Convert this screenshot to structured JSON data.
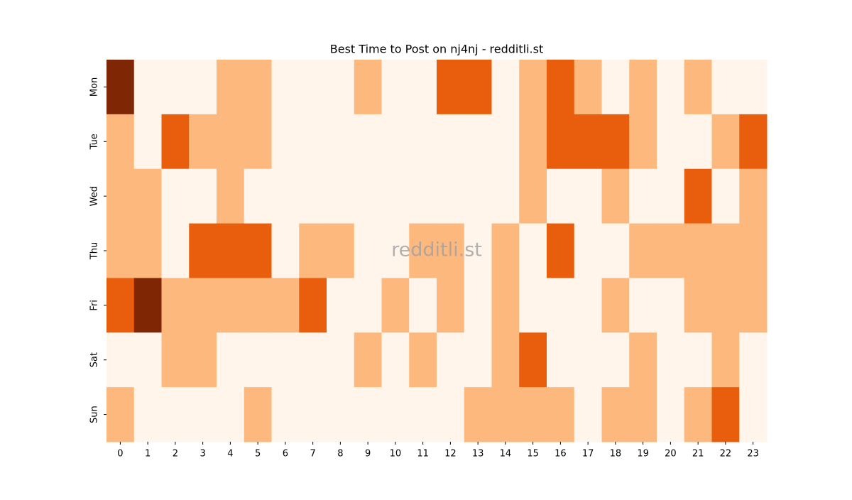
{
  "chart_data": {
    "type": "heatmap",
    "title": "Best Time to Post on nj4nj - redditli.st",
    "watermark": "redditli.st",
    "x_categories": [
      0,
      1,
      2,
      3,
      4,
      5,
      6,
      7,
      8,
      9,
      10,
      11,
      12,
      13,
      14,
      15,
      16,
      17,
      18,
      19,
      20,
      21,
      22,
      23
    ],
    "y_categories": [
      "Mon",
      "Tue",
      "Wed",
      "Thu",
      "Fri",
      "Sat",
      "Sun"
    ],
    "values": [
      [
        3,
        0,
        0,
        0,
        1,
        1,
        0,
        0,
        0,
        1,
        0,
        0,
        2,
        2,
        0,
        1,
        2,
        1,
        0,
        1,
        0,
        1,
        0,
        0
      ],
      [
        1,
        0,
        2,
        1,
        1,
        1,
        0,
        0,
        0,
        0,
        0,
        0,
        0,
        0,
        0,
        1,
        2,
        2,
        2,
        1,
        0,
        0,
        1,
        2
      ],
      [
        1,
        1,
        0,
        0,
        1,
        0,
        0,
        0,
        0,
        0,
        0,
        0,
        0,
        0,
        0,
        1,
        0,
        0,
        1,
        0,
        0,
        2,
        0,
        1
      ],
      [
        1,
        1,
        0,
        2,
        2,
        2,
        0,
        1,
        1,
        0,
        0,
        1,
        1,
        0,
        1,
        0,
        2,
        0,
        0,
        1,
        1,
        1,
        1,
        1
      ],
      [
        2,
        3,
        1,
        1,
        1,
        1,
        1,
        2,
        0,
        0,
        1,
        0,
        1,
        0,
        1,
        0,
        0,
        0,
        1,
        0,
        0,
        1,
        1,
        1
      ],
      [
        0,
        0,
        1,
        1,
        0,
        0,
        0,
        0,
        0,
        1,
        0,
        1,
        0,
        0,
        1,
        2,
        0,
        0,
        0,
        1,
        0,
        0,
        1,
        0
      ],
      [
        1,
        0,
        0,
        0,
        0,
        1,
        0,
        0,
        0,
        0,
        0,
        0,
        0,
        1,
        1,
        1,
        1,
        0,
        1,
        1,
        0,
        1,
        2,
        0
      ]
    ],
    "colors": [
      "#fff5eb",
      "#fdb97d",
      "#e95e0d",
      "#7f2704"
    ]
  }
}
